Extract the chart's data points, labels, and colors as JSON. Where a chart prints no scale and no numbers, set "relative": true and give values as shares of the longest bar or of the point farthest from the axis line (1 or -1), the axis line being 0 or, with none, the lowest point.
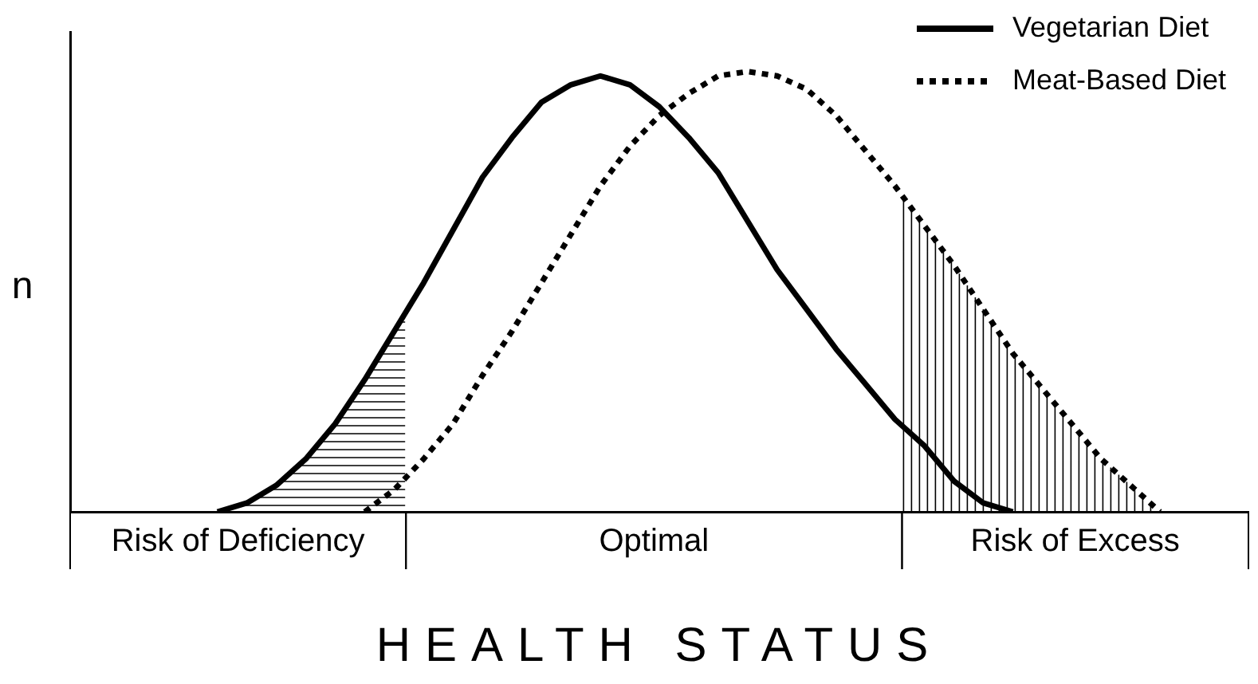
{
  "chart_data": {
    "type": "line",
    "relative": true,
    "xlabel": "HEALTH STATUS",
    "ylabel": "n",
    "grid": false,
    "legend": "top right",
    "marker": "none",
    "annotations": [
      "Risk of Deficiency",
      "Optimal",
      "Risk of Excess"
    ],
    "categories": [
      null,
      null,
      null,
      null,
      null,
      null,
      null,
      null,
      null,
      null,
      null,
      null,
      null,
      null,
      null,
      null,
      null,
      null,
      null,
      null,
      null,
      null,
      null,
      null,
      null,
      null,
      null,
      null,
      null,
      null,
      null,
      null,
      null,
      null,
      null,
      null,
      null,
      null,
      null,
      null,
      null
    ],
    "series": [
      {
        "name": "Vegetarian Diet",
        "color": "#000000",
        "line_style": "solid",
        "values": [
          null,
          null,
          null,
          null,
          null,
          0,
          0.02,
          0.06,
          0.12,
          0.2,
          0.3,
          0.41,
          0.52,
          0.64,
          0.76,
          0.85,
          0.93,
          0.97,
          0.99,
          0.97,
          0.92,
          0.85,
          0.77,
          0.66,
          0.55,
          0.46,
          0.37,
          0.29,
          0.21,
          0.15,
          0.07,
          0.02,
          0,
          null,
          null,
          null,
          null,
          null,
          null,
          null,
          null
        ]
      },
      {
        "name": "Meat-Based Diet",
        "color": "#000000",
        "line_style": "dotted",
        "values": [
          null,
          null,
          null,
          null,
          null,
          null,
          null,
          null,
          null,
          null,
          0,
          0.05,
          0.12,
          0.2,
          0.31,
          0.41,
          0.52,
          0.63,
          0.74,
          0.83,
          0.9,
          0.95,
          0.99,
          1,
          0.99,
          0.96,
          0.9,
          0.82,
          0.74,
          0.65,
          0.56,
          0.46,
          0.36,
          0.28,
          0.2,
          0.12,
          0.06,
          0,
          null,
          null,
          null
        ]
      }
    ]
  }
}
